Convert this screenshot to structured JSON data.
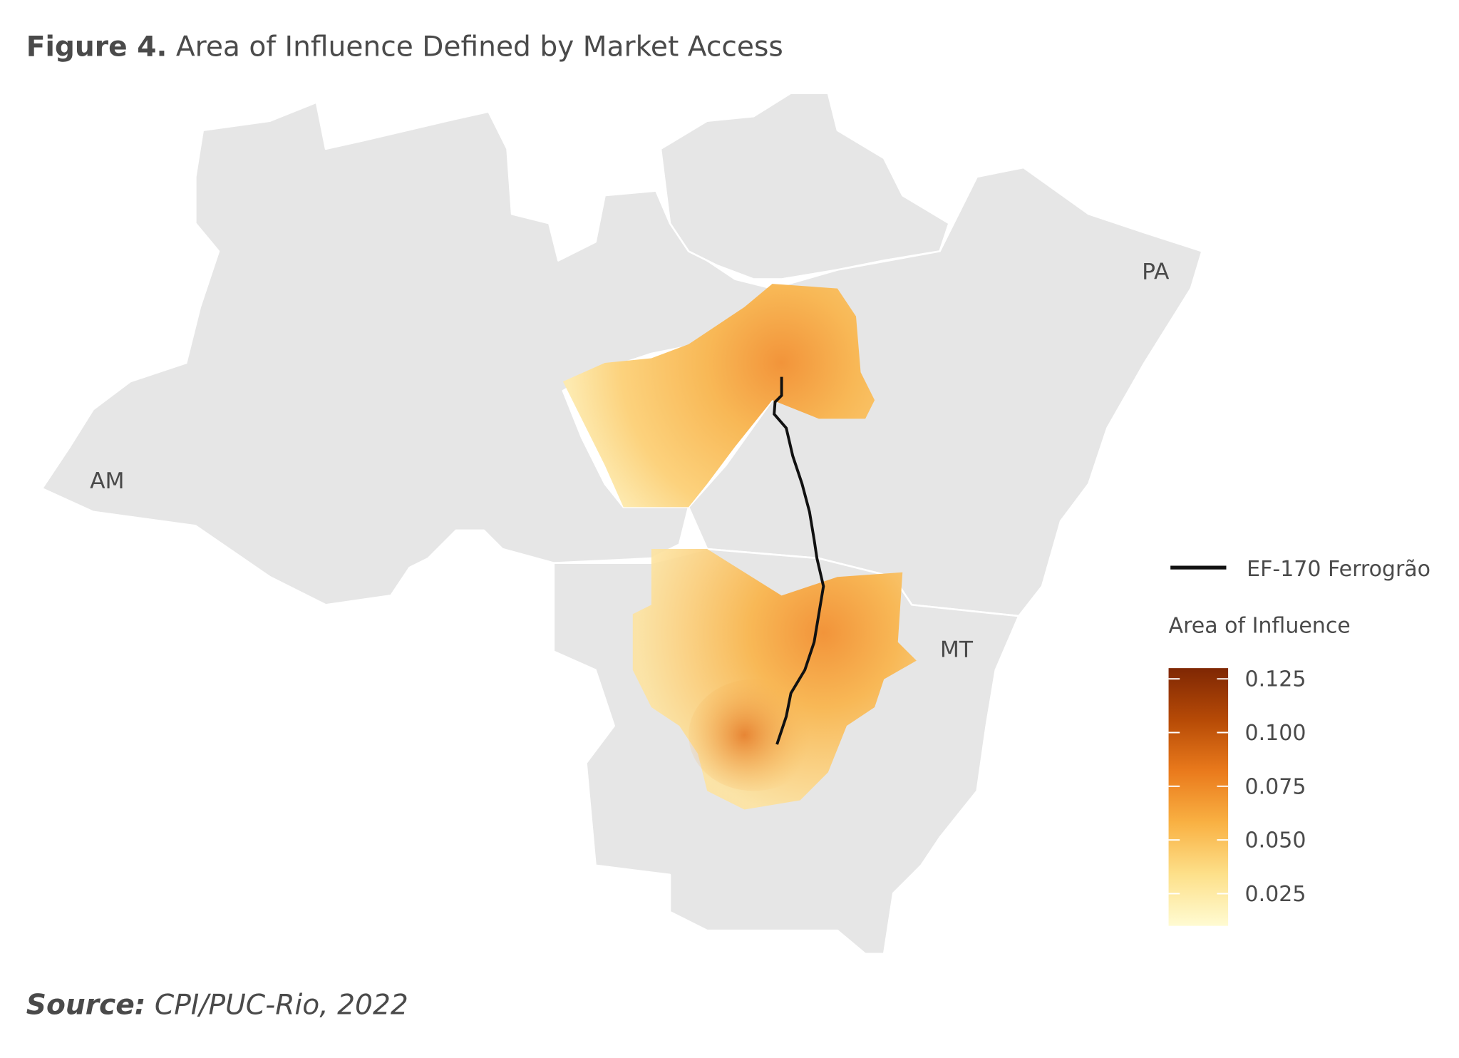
{
  "header": {
    "figure": "Figure 4.",
    "title": "Area of Influence Defined by Market Access"
  },
  "map": {
    "labels": [
      "AM",
      "PA",
      "MT"
    ]
  },
  "legend": {
    "line_label": "EF-170 Ferrogrão",
    "line_color": "#111111",
    "colorbar": {
      "title": "Area of Influence",
      "lim": [
        0.01,
        0.13
      ],
      "ticks": [
        {
          "value": 0.025,
          "label": "0.025"
        },
        {
          "value": 0.05,
          "label": "0.050"
        },
        {
          "value": 0.075,
          "label": "0.075"
        },
        {
          "value": 0.1,
          "label": "0.100"
        },
        {
          "value": 0.125,
          "label": "0.125"
        }
      ],
      "colors": [
        "#fffbd2",
        "#fde08a",
        "#f9b143",
        "#ea7a1c",
        "#b64a06",
        "#7f2704"
      ]
    }
  },
  "footer": {
    "source_label": "Source:",
    "source": "CPI/PUC-Rio, 2022"
  }
}
